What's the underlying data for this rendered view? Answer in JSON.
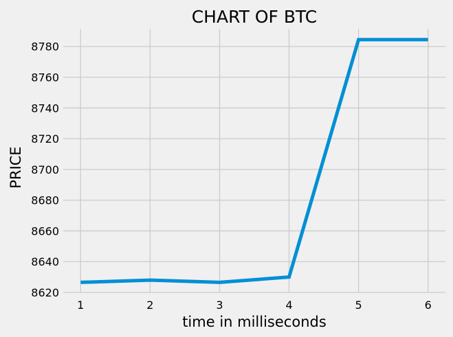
{
  "chart_data": {
    "type": "line",
    "title": "CHART OF BTC",
    "xlabel": "time in milliseconds",
    "ylabel": "PRICE",
    "x": [
      1,
      2,
      3,
      4,
      5,
      6
    ],
    "series": [
      {
        "values": [
          8626.5,
          8628,
          8626.5,
          8630,
          8784.5,
          8784.5
        ]
      }
    ],
    "xticks": [
      1,
      2,
      3,
      4,
      5,
      6
    ],
    "yticks": [
      8620,
      8640,
      8660,
      8680,
      8700,
      8720,
      8740,
      8760,
      8780
    ],
    "xlim": [
      0.75,
      6.25
    ],
    "ylim": [
      8620,
      8791.5
    ],
    "grid": true,
    "legend": "none",
    "style": "fivethirtyeight",
    "colors": {
      "line": "#008fd5",
      "background": "#f0f0f0",
      "grid": "#cbcbcb"
    }
  }
}
